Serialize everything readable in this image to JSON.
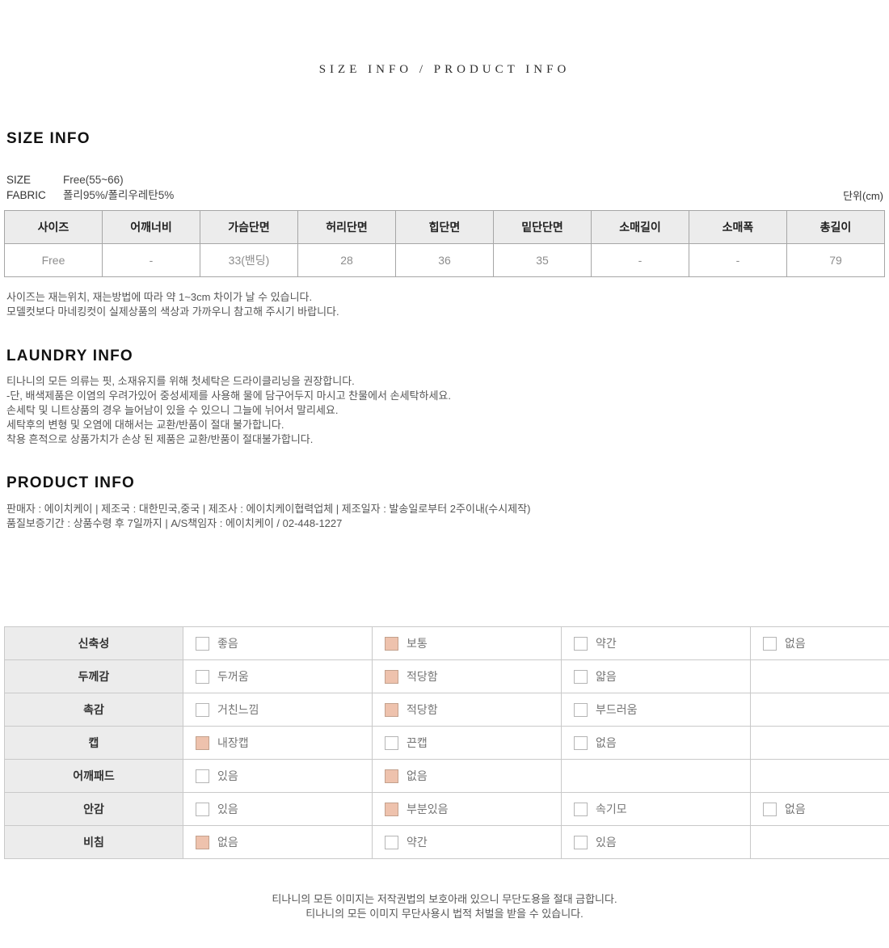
{
  "page_title": "SIZE INFO / PRODUCT INFO",
  "size_info": {
    "heading": "SIZE INFO",
    "specs": [
      {
        "label": "SIZE",
        "value": "Free(55~66)"
      },
      {
        "label": "FABRIC",
        "value": "폴리95%/폴리우레탄5%"
      }
    ],
    "unit_label": "단위(cm)",
    "table": {
      "headers": [
        "사이즈",
        "어깨너비",
        "가슴단면",
        "허리단면",
        "힙단면",
        "밑단단면",
        "소매길이",
        "소매폭",
        "총길이"
      ],
      "rows": [
        [
          "Free",
          "-",
          "33(밴딩)",
          "28",
          "36",
          "35",
          "-",
          "-",
          "79"
        ]
      ]
    },
    "notes": [
      "사이즈는 재는위치, 재는방법에 따라 약 1~3cm 차이가 날 수 있습니다.",
      "모델컷보다 마네킹컷이 실제상품의 색상과 가까우니 참고해 주시기 바랍니다."
    ]
  },
  "laundry_info": {
    "heading": "LAUNDRY INFO",
    "lines": [
      "티나니의 모든 의류는 핏, 소재유지를 위해 첫세탁은 드라이클리닝을 권장합니다.",
      "-단, 배색제품은 이염의 우려가있어 중성세제를 사용해 물에 담구어두지 마시고 찬물에서 손세탁하세요.",
      "손세탁 및 니트상품의 경우 늘어남이 있을 수 있으니 그늘에 뉘어서 말리세요.",
      "세탁후의 변형 및 오염에 대해서는 교환/반품이 절대 불가합니다.",
      "착용 흔적으로 상품가치가 손상 된 제품은 교환/반품이 절대불가합니다."
    ]
  },
  "product_info": {
    "heading": "PRODUCT INFO",
    "lines": [
      "판매자 : 에이치케이 | 제조국 : 대한민국,중국 | 제조사 : 에이치케이협력업체 | 제조일자 : 발송일로부터 2주이내(수시제작)",
      "품질보증기간 : 상품수령 후 7일까지 | A/S책임자 : 에이치케이 / 02-448-1227"
    ]
  },
  "attributes_table": {
    "rows": [
      {
        "label": "신축성",
        "options": [
          {
            "text": "좋음",
            "checked": false
          },
          {
            "text": "보통",
            "checked": true
          },
          {
            "text": "약간",
            "checked": false
          },
          {
            "text": "없음",
            "checked": false
          }
        ]
      },
      {
        "label": "두께감",
        "options": [
          {
            "text": "두꺼움",
            "checked": false
          },
          {
            "text": "적당함",
            "checked": true
          },
          {
            "text": "얇음",
            "checked": false
          },
          null
        ]
      },
      {
        "label": "촉감",
        "options": [
          {
            "text": "거친느낌",
            "checked": false
          },
          {
            "text": "적당함",
            "checked": true
          },
          {
            "text": "부드러움",
            "checked": false
          },
          null
        ]
      },
      {
        "label": "캡",
        "options": [
          {
            "text": "내장캡",
            "checked": true
          },
          {
            "text": "끈캡",
            "checked": false
          },
          {
            "text": "없음",
            "checked": false
          },
          null
        ]
      },
      {
        "label": "어깨패드",
        "options": [
          {
            "text": "있음",
            "checked": false
          },
          {
            "text": "없음",
            "checked": true
          },
          null,
          null
        ]
      },
      {
        "label": "안감",
        "options": [
          {
            "text": "있음",
            "checked": false
          },
          {
            "text": "부분있음",
            "checked": true
          },
          {
            "text": "속기모",
            "checked": false
          },
          {
            "text": "없음",
            "checked": false
          }
        ]
      },
      {
        "label": "비침",
        "options": [
          {
            "text": "없음",
            "checked": true
          },
          {
            "text": "약간",
            "checked": false
          },
          {
            "text": "있음",
            "checked": false
          },
          null
        ]
      }
    ]
  },
  "footer": {
    "lines": [
      "티나니의 모든 이미지는 저작권법의 보호아래 있으니 무단도용을 절대 금합니다.",
      "티나니의 모든 이미지 무단사용시 법적 처벌을 받을 수 있습니다."
    ]
  },
  "colors": {
    "checkbox_checked_fill": "#eec2ad",
    "table_header_bg": "#ececec",
    "size_table_border": "#a6a6a6",
    "attr_table_border": "#c9c9c9"
  }
}
